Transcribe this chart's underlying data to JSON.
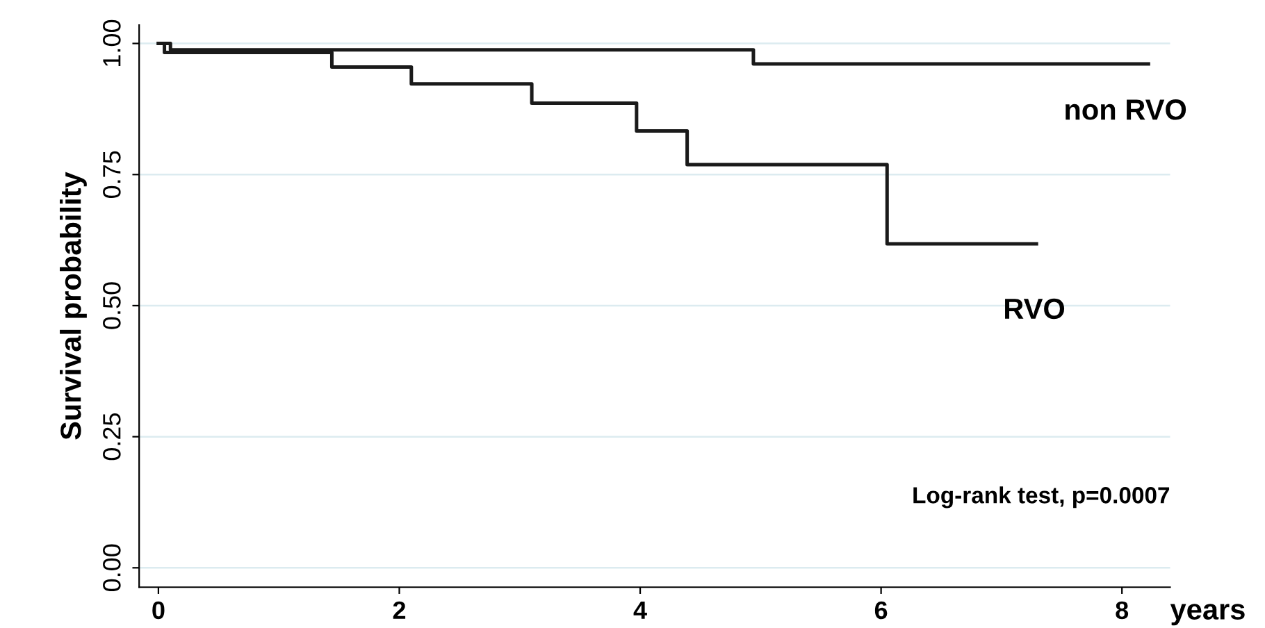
{
  "chart_data": {
    "type": "step",
    "ylabel": "Survival probability",
    "xlabel": "years",
    "series": [
      {
        "name": "non RVO",
        "color": "#1a1a1a",
        "x": [
          0,
          0.1,
          4.94,
          8.22
        ],
        "values": [
          1.0,
          0.988,
          0.961,
          0.961
        ]
      },
      {
        "name": "RVO",
        "color": "#1a1a1a",
        "x": [
          0,
          0.05,
          1.44,
          2.1,
          3.1,
          3.97,
          4.39,
          6.05,
          7.29
        ],
        "values": [
          1.0,
          0.983,
          0.955,
          0.923,
          0.886,
          0.833,
          0.769,
          0.618,
          0.618
        ]
      }
    ],
    "xlim": [
      -0.16,
      8.4
    ],
    "ylim": [
      -0.037,
      1.035
    ],
    "xticks": [
      0,
      2,
      4,
      6,
      8
    ],
    "yticks": [
      {
        "value": 0,
        "label": "0.00"
      },
      {
        "value": 0.25,
        "label": "0.25"
      },
      {
        "value": 0.5,
        "label": "0.50"
      },
      {
        "value": 0.75,
        "label": "0.75"
      },
      {
        "value": 1,
        "label": "1.00"
      }
    ],
    "grid": "y",
    "line_style": "solid",
    "marker": "none",
    "annotations": [
      "Log-rank test, p=0.0007"
    ]
  }
}
